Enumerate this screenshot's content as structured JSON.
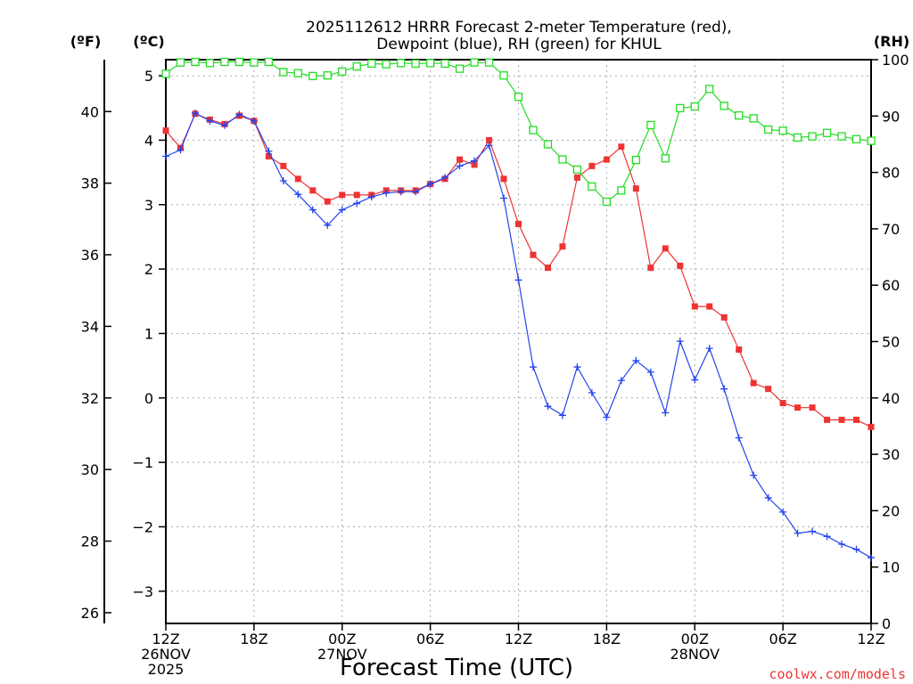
{
  "chart_data": {
    "type": "line",
    "title_line1": "2025112612 HRRR Forecast 2-meter Temperature (red),",
    "title_line2": "Dewpoint (blue), RH (green) for KHUL",
    "xlabel": "Forecast Time (UTC)",
    "credit": "coolwx.com/models",
    "unit_left_f": "(ºF)",
    "unit_left_c": "(ºC)",
    "unit_right": "(RH)",
    "grid": true,
    "x_range_hours": [
      0,
      48
    ],
    "y_range_c": [
      -3.5,
      5.25
    ],
    "rh_range": [
      0,
      100
    ],
    "x_ticks": [
      {
        "h": 0,
        "lines": [
          "12Z",
          "26NOV",
          "2025"
        ]
      },
      {
        "h": 6,
        "lines": [
          "18Z"
        ]
      },
      {
        "h": 12,
        "lines": [
          "00Z",
          "27NOV"
        ]
      },
      {
        "h": 18,
        "lines": [
          "06Z"
        ]
      },
      {
        "h": 24,
        "lines": [
          "12Z"
        ]
      },
      {
        "h": 30,
        "lines": [
          "18Z"
        ]
      },
      {
        "h": 36,
        "lines": [
          "00Z",
          "28NOV"
        ]
      },
      {
        "h": 42,
        "lines": [
          "06Z"
        ]
      },
      {
        "h": 48,
        "lines": [
          "12Z"
        ]
      }
    ],
    "y_ticks_c": [
      -3,
      -2,
      -1,
      0,
      1,
      2,
      3,
      4,
      5
    ],
    "y_ticks_f": [
      26,
      28,
      30,
      32,
      34,
      36,
      38,
      40
    ],
    "y_ticks_rh": [
      0,
      10,
      20,
      30,
      40,
      50,
      60,
      70,
      80,
      90,
      100
    ],
    "colors": {
      "temperature": "#ee3333",
      "dewpoint": "#2244ee",
      "rh": "#22dd22",
      "grid": "#aaaaaa"
    },
    "series": [
      {
        "name": "Temperature",
        "axis": "C",
        "values": [
          4.15,
          3.88,
          4.41,
          4.32,
          4.25,
          4.38,
          4.3,
          3.75,
          3.6,
          3.4,
          3.22,
          3.05,
          3.15,
          3.15,
          3.15,
          3.22,
          3.22,
          3.22,
          3.32,
          3.4,
          3.7,
          3.62,
          4.0,
          3.4,
          2.7,
          2.22,
          2.02,
          2.35,
          3.42,
          3.6,
          3.7,
          3.9,
          3.25,
          2.02,
          2.32,
          2.05,
          1.42,
          1.42,
          1.25,
          0.75,
          0.23,
          0.14,
          -0.08,
          -0.15,
          -0.15,
          -0.34,
          -0.34,
          -0.34,
          -0.45
        ]
      },
      {
        "name": "Dewpoint",
        "axis": "C",
        "values": [
          3.75,
          3.85,
          4.42,
          4.3,
          4.23,
          4.4,
          4.3,
          3.83,
          3.37,
          3.16,
          2.92,
          2.68,
          2.92,
          3.02,
          3.12,
          3.18,
          3.2,
          3.2,
          3.32,
          3.42,
          3.6,
          3.68,
          3.92,
          3.1,
          1.83,
          0.48,
          -0.13,
          -0.27,
          0.48,
          0.08,
          -0.3,
          0.27,
          0.58,
          0.4,
          -0.23,
          0.88,
          0.28,
          0.77,
          0.14,
          -0.62,
          -1.2,
          -1.55,
          -1.77,
          -2.1,
          -2.07,
          -2.15,
          -2.27,
          -2.35,
          -2.48
        ]
      },
      {
        "name": "RH",
        "axis": "RH",
        "values": [
          97.5,
          99.5,
          99.6,
          99.4,
          99.6,
          99.6,
          99.5,
          99.6,
          97.8,
          97.6,
          97.1,
          97.2,
          97.9,
          98.8,
          99.3,
          99.2,
          99.4,
          99.3,
          99.4,
          99.3,
          98.4,
          99.5,
          99.5,
          97.2,
          93.4,
          87.5,
          85.0,
          82.3,
          80.5,
          77.5,
          74.8,
          76.8,
          82.2,
          88.4,
          82.5,
          91.4,
          91.7,
          94.8,
          91.8,
          90.1,
          89.6,
          87.6,
          87.4,
          86.2,
          86.4,
          87.0,
          86.4,
          85.9,
          85.6
        ]
      }
    ]
  }
}
